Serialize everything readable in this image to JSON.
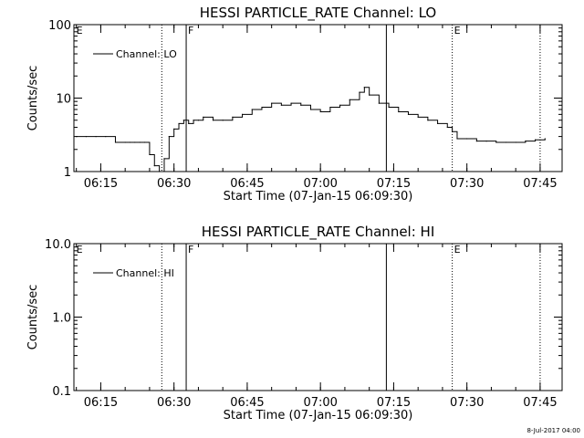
{
  "footer_date": "8-Jul-2017 04:00",
  "chart_data": [
    {
      "type": "line",
      "title": "HESSI PARTICLE_RATE Channel: LO",
      "xlabel": "Start Time (07-Jan-15 06:09:30)",
      "ylabel": "Counts/sec",
      "yscale": "log",
      "ylim": [
        1,
        100
      ],
      "yticks": [
        1,
        10,
        100
      ],
      "ytick_labels": [
        "1",
        "10",
        "100"
      ],
      "xlim": [
        "06:09:30",
        "07:49:30"
      ],
      "xticks": [
        "06:15",
        "06:30",
        "06:45",
        "07:00",
        "07:15",
        "07:30",
        "07:45"
      ],
      "legend": "Channel: LO",
      "legend_position": "top-left",
      "vlines": [
        {
          "time": "06:27:30",
          "style": "dotted",
          "label": ""
        },
        {
          "time": "06:32:30",
          "style": "solid",
          "label": "F"
        },
        {
          "time": "07:13:30",
          "style": "solid",
          "label": ""
        },
        {
          "time": "07:27:00",
          "style": "dotted",
          "label": "E"
        },
        {
          "time": "07:45:00",
          "style": "dotted",
          "label": ""
        }
      ],
      "corner_labels": [
        {
          "time": "06:10:00",
          "label": "E"
        }
      ],
      "series": [
        {
          "name": "Channel: LO",
          "x": [
            "06:10",
            "06:12",
            "06:14",
            "06:16",
            "06:18",
            "06:20",
            "06:21",
            "06:22",
            "06:23",
            "06:24",
            "06:25",
            "06:26",
            "06:27",
            "06:28",
            "06:29",
            "06:30",
            "06:31",
            "06:32",
            "06:33",
            "06:34",
            "06:35",
            "06:36",
            "06:38",
            "06:40",
            "06:42",
            "06:44",
            "06:46",
            "06:48",
            "06:50",
            "06:52",
            "06:54",
            "06:56",
            "06:58",
            "07:00",
            "07:02",
            "07:04",
            "07:06",
            "07:08",
            "07:09",
            "07:10",
            "07:12",
            "07:14",
            "07:16",
            "07:18",
            "07:20",
            "07:22",
            "07:24",
            "07:26",
            "07:27",
            "07:28",
            "07:30",
            "07:32",
            "07:34",
            "07:36",
            "07:38",
            "07:40",
            "07:42",
            "07:44",
            "07:46"
          ],
          "values": [
            3,
            3,
            3,
            3,
            2.5,
            2.5,
            2.5,
            2.5,
            2.5,
            2.5,
            1.7,
            1.2,
            1.0,
            1.5,
            3,
            3.8,
            4.5,
            5,
            4.5,
            5,
            5,
            5.5,
            5,
            5,
            5.5,
            6,
            7,
            7.5,
            8.5,
            8,
            8.5,
            8,
            7,
            6.5,
            7.5,
            8,
            9.5,
            12,
            14,
            11,
            8.5,
            7.5,
            6.5,
            6,
            5.5,
            5,
            4.5,
            4,
            3.5,
            2.8,
            2.8,
            2.6,
            2.6,
            2.5,
            2.5,
            2.5,
            2.6,
            2.7,
            2.8
          ]
        }
      ]
    },
    {
      "type": "line",
      "title": "HESSI PARTICLE_RATE Channel: HI",
      "xlabel": "Start Time (07-Jan-15 06:09:30)",
      "ylabel": "Counts/sec",
      "yscale": "log",
      "ylim": [
        0.1,
        10
      ],
      "yticks": [
        0.1,
        1,
        10
      ],
      "ytick_labels": [
        "0.1",
        "1.0",
        "10.0"
      ],
      "xlim": [
        "06:09:30",
        "07:49:30"
      ],
      "xticks": [
        "06:15",
        "06:30",
        "06:45",
        "07:00",
        "07:15",
        "07:30",
        "07:45"
      ],
      "legend": "Channel: HI",
      "legend_position": "top-left",
      "vlines": [
        {
          "time": "06:27:30",
          "style": "dotted",
          "label": ""
        },
        {
          "time": "06:32:30",
          "style": "solid",
          "label": "F"
        },
        {
          "time": "07:13:30",
          "style": "solid",
          "label": ""
        },
        {
          "time": "07:27:00",
          "style": "dotted",
          "label": "E"
        },
        {
          "time": "07:45:00",
          "style": "dotted",
          "label": ""
        }
      ],
      "corner_labels": [
        {
          "time": "06:10:00",
          "label": "E"
        }
      ],
      "series": [
        {
          "name": "Channel: HI",
          "x": [],
          "values": []
        }
      ]
    }
  ]
}
